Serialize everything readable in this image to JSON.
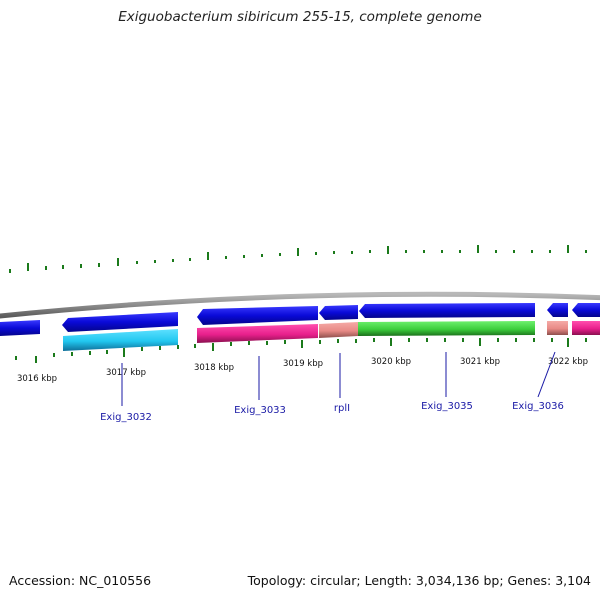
{
  "title": "Exiguobacterium sibiricum 255-15, complete genome",
  "footer": {
    "accession": "Accession: NC_010556",
    "summary": "Topology: circular; Length: 3,034,136 bp; Genes: 3,104"
  },
  "scale_labels": [
    "3016 kbp",
    "3017 kbp",
    "3018 kbp",
    "3019 kbp",
    "3020 kbp",
    "3021 kbp",
    "3022 kbp"
  ],
  "gene_labels": [
    "Exig_3032",
    "Exig_3033",
    "rplI",
    "Exig_3035",
    "Exig_3036"
  ],
  "colors": {
    "cds": "#0a0ad8",
    "gene_cyan": "#22c8f0",
    "gene_magenta": "#e8208c",
    "gene_salmon": "#e88a86",
    "gene_green": "#3cce3c",
    "backbone": "#8a8a8a",
    "tick": "#1b7a1b",
    "label": "#1a1aa6"
  }
}
